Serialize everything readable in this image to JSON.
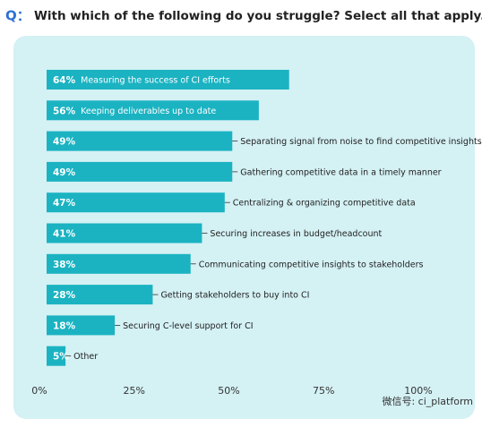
{
  "chart_data": {
    "type": "bar",
    "orientation": "horizontal",
    "title_prefix": "Q：",
    "title": "With which of the following do you struggle? Select all that apply.",
    "categories": [
      "Measuring the success of CI efforts",
      "Keeping deliverables up to date",
      "Separating signal from noise to find competitive insights",
      "Gathering competitive data in a timely manner",
      "Centralizing & organizing competitive data",
      "Securing increases in budget/headcount",
      "Communicating competitive insights to stakeholders",
      "Getting stakeholders to buy into CI",
      "Securing C-level support for CI",
      "Other"
    ],
    "values": [
      64,
      56,
      49,
      49,
      47,
      41,
      38,
      28,
      18,
      5
    ],
    "value_labels": [
      "64%",
      "56%",
      "49%",
      "49%",
      "47%",
      "41%",
      "38%",
      "28%",
      "18%",
      "5%"
    ],
    "color": "#1bb3c2",
    "xlim": [
      0,
      100
    ],
    "xticks": [
      {
        "value": 0,
        "label": "0%"
      },
      {
        "value": 25,
        "label": "25%"
      },
      {
        "value": 50,
        "label": "50%"
      },
      {
        "value": 75,
        "label": "75%"
      },
      {
        "value": 100,
        "label": "100%"
      }
    ],
    "watermark": "微信号: ci_platform"
  }
}
